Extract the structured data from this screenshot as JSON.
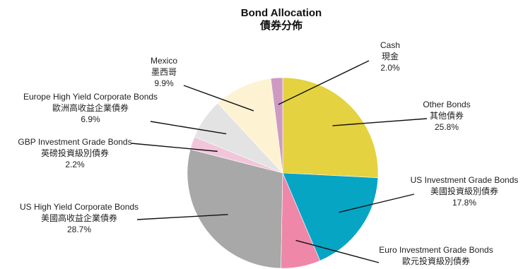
{
  "chart_data": {
    "type": "pie",
    "title": "Bond Allocation",
    "subtitle": "債券分佈",
    "slices": [
      {
        "name_en": "Other Bonds",
        "name_zh": "其他債券",
        "value": 25.8,
        "value_label": "25.8%",
        "color": "#e4d240"
      },
      {
        "name_en": "US Investment Grade Bonds",
        "name_zh": "美國投資級別債券",
        "value": 17.8,
        "value_label": "17.8%",
        "color": "#06a5c4"
      },
      {
        "name_en": "Euro Investment Grade Bonds",
        "name_zh": "歐元投資級別債券",
        "value": 6.7,
        "value_label": "",
        "color": "#ef87a8"
      },
      {
        "name_en": "US High Yield Corporate Bonds",
        "name_zh": "美國高收益企業債券",
        "value": 28.7,
        "value_label": "28.7%",
        "color": "#a8a8a8"
      },
      {
        "name_en": "GBP Investment Grade Bonds",
        "name_zh": "英磅投資級別債券",
        "value": 2.2,
        "value_label": "2.2%",
        "color": "#f2c6da"
      },
      {
        "name_en": "Europe High Yield Corporate Bonds",
        "name_zh": "歐洲高收益企業債券",
        "value": 6.9,
        "value_label": "6.9%",
        "color": "#e3e3e3"
      },
      {
        "name_en": "Mexico",
        "name_zh": "墨西哥",
        "value": 9.9,
        "value_label": "9.9%",
        "color": "#fdf3d3"
      },
      {
        "name_en": "Cash",
        "name_zh": "現金",
        "value": 2.0,
        "value_label": "2.0%",
        "color": "#cf9ac2"
      }
    ]
  }
}
